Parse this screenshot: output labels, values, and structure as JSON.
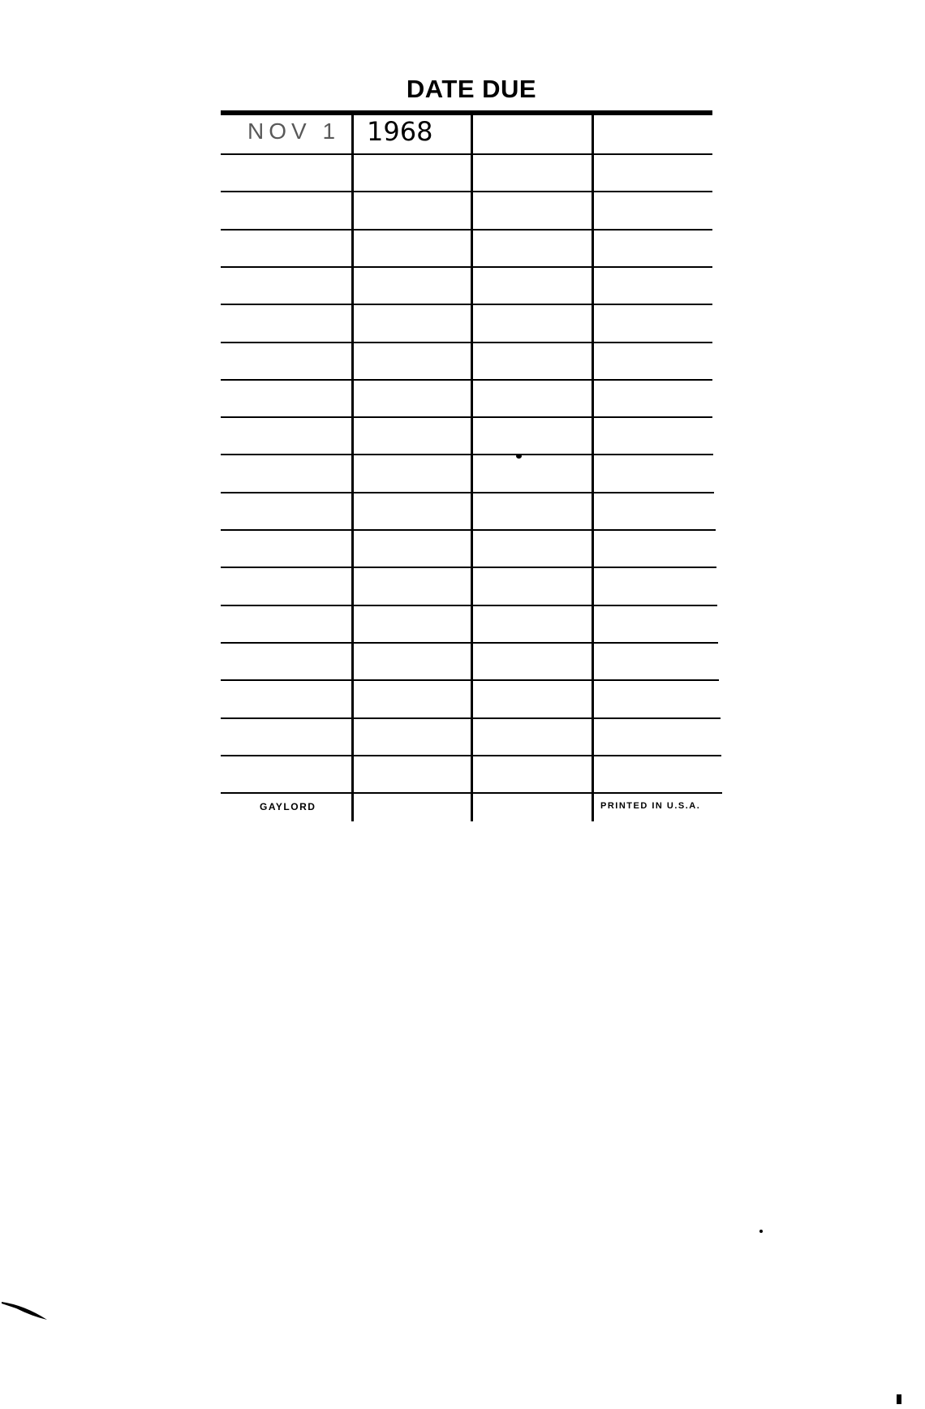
{
  "card": {
    "title": "DATE DUE",
    "rows": [
      {
        "stamp_date": "NOV 1",
        "stamp_year": "1968"
      }
    ],
    "footer_left": "GAYLORD",
    "footer_right": "PRINTED IN U.S.A."
  }
}
